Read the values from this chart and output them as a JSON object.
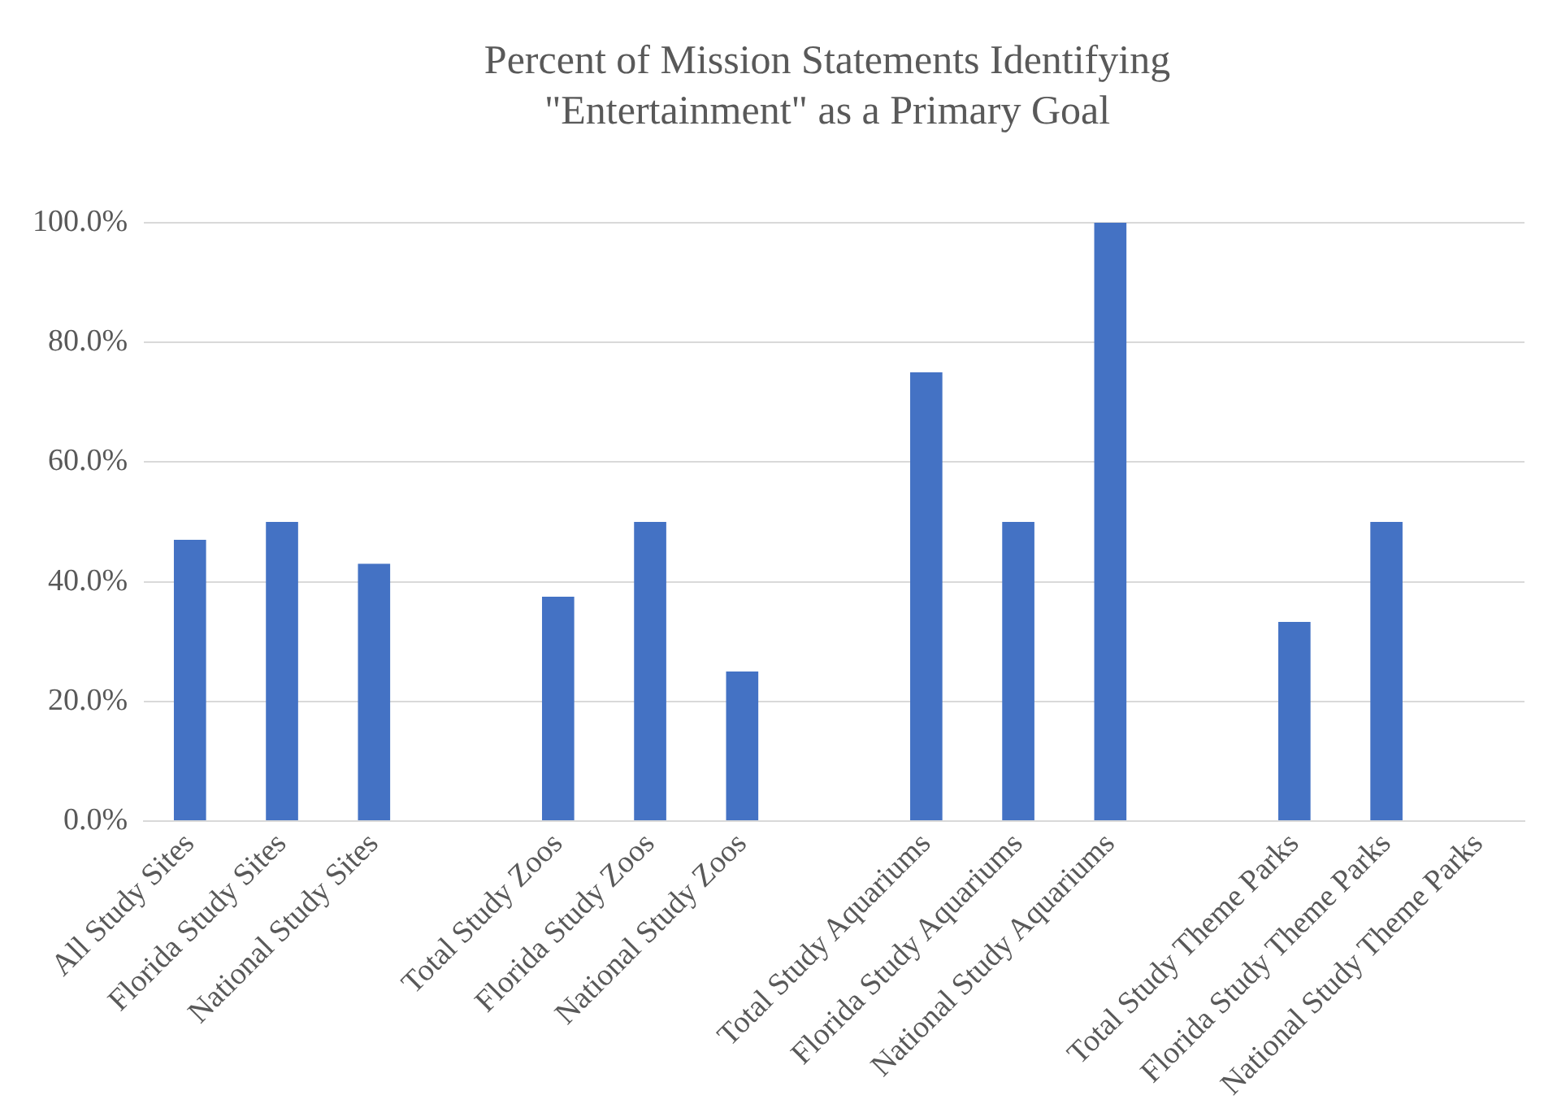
{
  "chart_data": {
    "type": "bar",
    "title": "Percent of Mission Statements Identifying \"Entertainment\" as a Primary Goal",
    "categories": [
      "All Study Sites",
      "Florida Study Sites",
      "National Study Sites",
      null,
      "Total Study Zoos",
      "Florida Study Zoos",
      "National Study Zoos",
      null,
      "Total Study Aquariums",
      "Florida Study Aquariums",
      "National Study Aquariums",
      null,
      "Total Study Theme Parks",
      "Florida Study Theme Parks",
      "National Study Theme Parks"
    ],
    "values": [
      47,
      50,
      43,
      null,
      37.5,
      50,
      25,
      null,
      75,
      50,
      100,
      null,
      33.3,
      50,
      0
    ],
    "color": "#4472c4",
    "ylim": [
      0,
      100
    ],
    "yticks": [
      {
        "value": 0,
        "label": "0.0%"
      },
      {
        "value": 20,
        "label": "20.0%"
      },
      {
        "value": 40,
        "label": "40.0%"
      },
      {
        "value": 60,
        "label": "60.0%"
      },
      {
        "value": 80,
        "label": "80.0%"
      },
      {
        "value": 100,
        "label": "100.0%"
      }
    ],
    "grid": "y"
  }
}
